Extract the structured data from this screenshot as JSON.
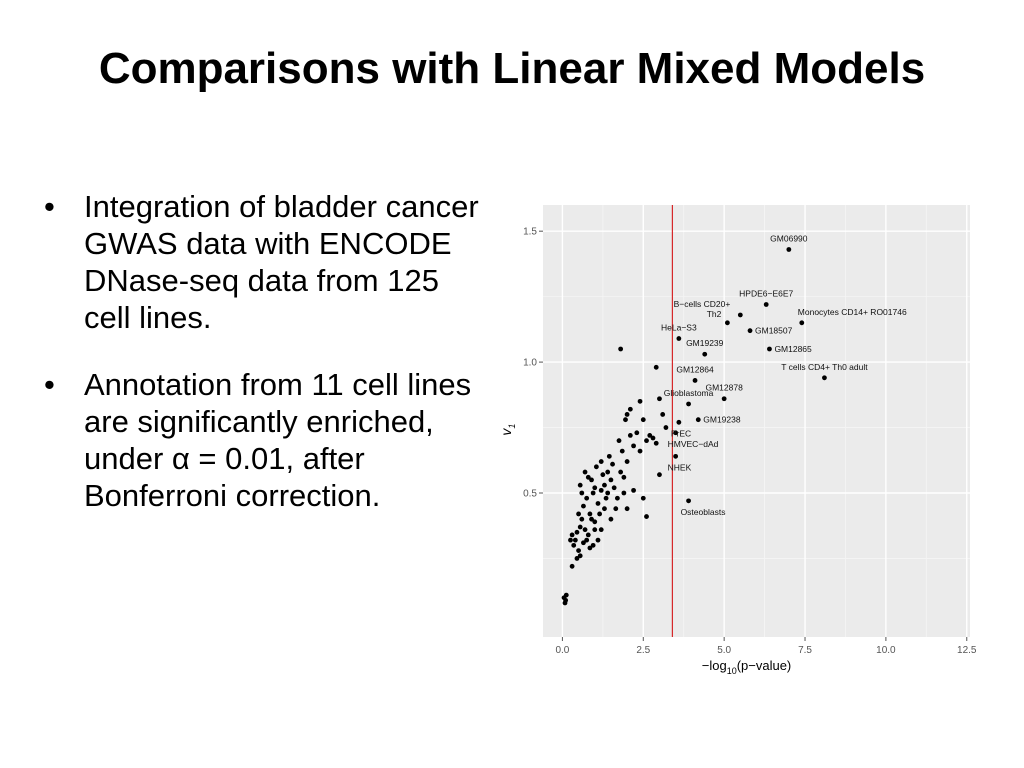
{
  "slide": {
    "title": "Comparisons with Linear Mixed Models",
    "bullets": [
      "Integration of bladder cancer GWAS data with ENCODE DNase-seq data from 125 cell lines.",
      "Annotation from 11 cell lines are significantly enriched, under α = 0.01, after Bonferroni correction."
    ]
  },
  "chart_data": {
    "type": "scatter",
    "xlabel_prefix": "−log",
    "xlabel_sub": "10",
    "xlabel_suffix": "(p−value)",
    "ylabel": "v",
    "ylabel_sub": "1",
    "xlim": [
      -0.6,
      12.6
    ],
    "ylim": [
      -0.05,
      1.6
    ],
    "x_ticks": [
      0.0,
      2.5,
      5.0,
      7.5,
      10.0,
      12.5
    ],
    "x_tick_labels": [
      "0.0",
      "2.5",
      "5.0",
      "7.5",
      "10.0",
      "12.5"
    ],
    "y_ticks": [
      0.5,
      1.0,
      1.5
    ],
    "y_tick_labels": [
      "0.5",
      "1.0",
      "1.5"
    ],
    "grid": true,
    "threshold_x": 3.4,
    "threshold_color": "#d62728",
    "panel_color": "#ebebeb",
    "point_color": "#000000",
    "labeled_points": [
      {
        "label": "GM06990",
        "x": 7.0,
        "y": 1.43,
        "label_side": "top"
      },
      {
        "label": "HPDE6−E6E7",
        "x": 6.3,
        "y": 1.22,
        "label_side": "top"
      },
      {
        "label": "B−cells CD20+",
        "x": 5.5,
        "y": 1.18,
        "label_side": "topleft"
      },
      {
        "label": "Monocytes CD14+ RO01746",
        "x": 7.4,
        "y": 1.15,
        "label_side": "topright"
      },
      {
        "label": "Th2",
        "x": 5.1,
        "y": 1.15,
        "label_side": "left"
      },
      {
        "label": "GM18507",
        "x": 5.8,
        "y": 1.12,
        "label_side": "right"
      },
      {
        "label": "HeLa−S3",
        "x": 3.6,
        "y": 1.09,
        "label_side": "top"
      },
      {
        "label": "GM19239",
        "x": 4.4,
        "y": 1.03,
        "label_side": "top"
      },
      {
        "label": "GM12865",
        "x": 6.4,
        "y": 1.05,
        "label_side": "right"
      },
      {
        "label": "GM12864",
        "x": 4.1,
        "y": 0.93,
        "label_side": "top"
      },
      {
        "label": "T cells CD4+ Th0 adult",
        "x": 8.1,
        "y": 0.94,
        "label_side": "top"
      },
      {
        "label": "Glioblastoma",
        "x": 3.9,
        "y": 0.84,
        "label_side": "top"
      },
      {
        "label": "GM12878",
        "x": 5.0,
        "y": 0.86,
        "label_side": "top"
      },
      {
        "label": "GM19238",
        "x": 4.2,
        "y": 0.78,
        "label_side": "right"
      },
      {
        "label": "PrEC",
        "x": 3.6,
        "y": 0.77,
        "label_side": "bottom"
      },
      {
        "label": "HMVEC−dAd",
        "x": 3.5,
        "y": 0.73,
        "label_side": "bottom"
      },
      {
        "label": "NHEK",
        "x": 3.5,
        "y": 0.64,
        "label_side": "bottom"
      },
      {
        "label": "Osteoblasts",
        "x": 3.9,
        "y": 0.47,
        "label_side": "bottom"
      }
    ],
    "points": [
      [
        0.05,
        0.1
      ],
      [
        0.1,
        0.09
      ],
      [
        0.12,
        0.11
      ],
      [
        0.08,
        0.08
      ],
      [
        0.3,
        0.22
      ],
      [
        0.35,
        0.3
      ],
      [
        0.25,
        0.32
      ],
      [
        0.3,
        0.34
      ],
      [
        0.4,
        0.32
      ],
      [
        0.45,
        0.35
      ],
      [
        0.5,
        0.28
      ],
      [
        0.55,
        0.37
      ],
      [
        0.6,
        0.4
      ],
      [
        0.5,
        0.42
      ],
      [
        0.7,
        0.36
      ],
      [
        0.65,
        0.45
      ],
      [
        0.8,
        0.34
      ],
      [
        0.75,
        0.48
      ],
      [
        0.9,
        0.4
      ],
      [
        0.85,
        0.42
      ],
      [
        1.0,
        0.39
      ],
      [
        1.1,
        0.46
      ],
      [
        1.0,
        0.52
      ],
      [
        0.9,
        0.55
      ],
      [
        0.6,
        0.5
      ],
      [
        0.55,
        0.53
      ],
      [
        0.7,
        0.58
      ],
      [
        0.8,
        0.56
      ],
      [
        0.95,
        0.5
      ],
      [
        1.2,
        0.51
      ],
      [
        1.3,
        0.53
      ],
      [
        1.25,
        0.57
      ],
      [
        1.4,
        0.5
      ],
      [
        1.5,
        0.55
      ],
      [
        1.35,
        0.48
      ],
      [
        1.6,
        0.52
      ],
      [
        1.7,
        0.48
      ],
      [
        1.55,
        0.61
      ],
      [
        1.45,
        0.64
      ],
      [
        1.4,
        0.58
      ],
      [
        1.8,
        0.58
      ],
      [
        1.9,
        0.56
      ],
      [
        2.0,
        0.62
      ],
      [
        1.85,
        0.66
      ],
      [
        1.75,
        0.7
      ],
      [
        2.1,
        0.72
      ],
      [
        2.2,
        0.68
      ],
      [
        2.0,
        0.8
      ],
      [
        2.1,
        0.82
      ],
      [
        1.95,
        0.78
      ],
      [
        2.5,
        0.78
      ],
      [
        2.4,
        0.85
      ],
      [
        2.6,
        0.7
      ],
      [
        2.7,
        0.72
      ],
      [
        2.8,
        0.71
      ],
      [
        2.9,
        0.69
      ],
      [
        3.1,
        0.8
      ],
      [
        3.2,
        0.75
      ],
      [
        3.0,
        0.86
      ],
      [
        2.3,
        0.73
      ],
      [
        2.4,
        0.66
      ],
      [
        2.5,
        0.48
      ],
      [
        2.6,
        0.41
      ],
      [
        2.2,
        0.51
      ],
      [
        2.0,
        0.44
      ],
      [
        1.5,
        0.4
      ],
      [
        1.3,
        0.44
      ],
      [
        1.2,
        0.36
      ],
      [
        1.1,
        0.32
      ],
      [
        1.0,
        0.36
      ],
      [
        0.95,
        0.3
      ],
      [
        0.85,
        0.29
      ],
      [
        0.75,
        0.32
      ],
      [
        0.65,
        0.31
      ],
      [
        0.55,
        0.26
      ],
      [
        0.45,
        0.25
      ],
      [
        1.8,
        1.05
      ],
      [
        2.9,
        0.98
      ],
      [
        3.0,
        0.57
      ],
      [
        1.9,
        0.5
      ],
      [
        1.65,
        0.44
      ],
      [
        1.15,
        0.42
      ],
      [
        1.05,
        0.6
      ],
      [
        1.2,
        0.62
      ]
    ]
  }
}
